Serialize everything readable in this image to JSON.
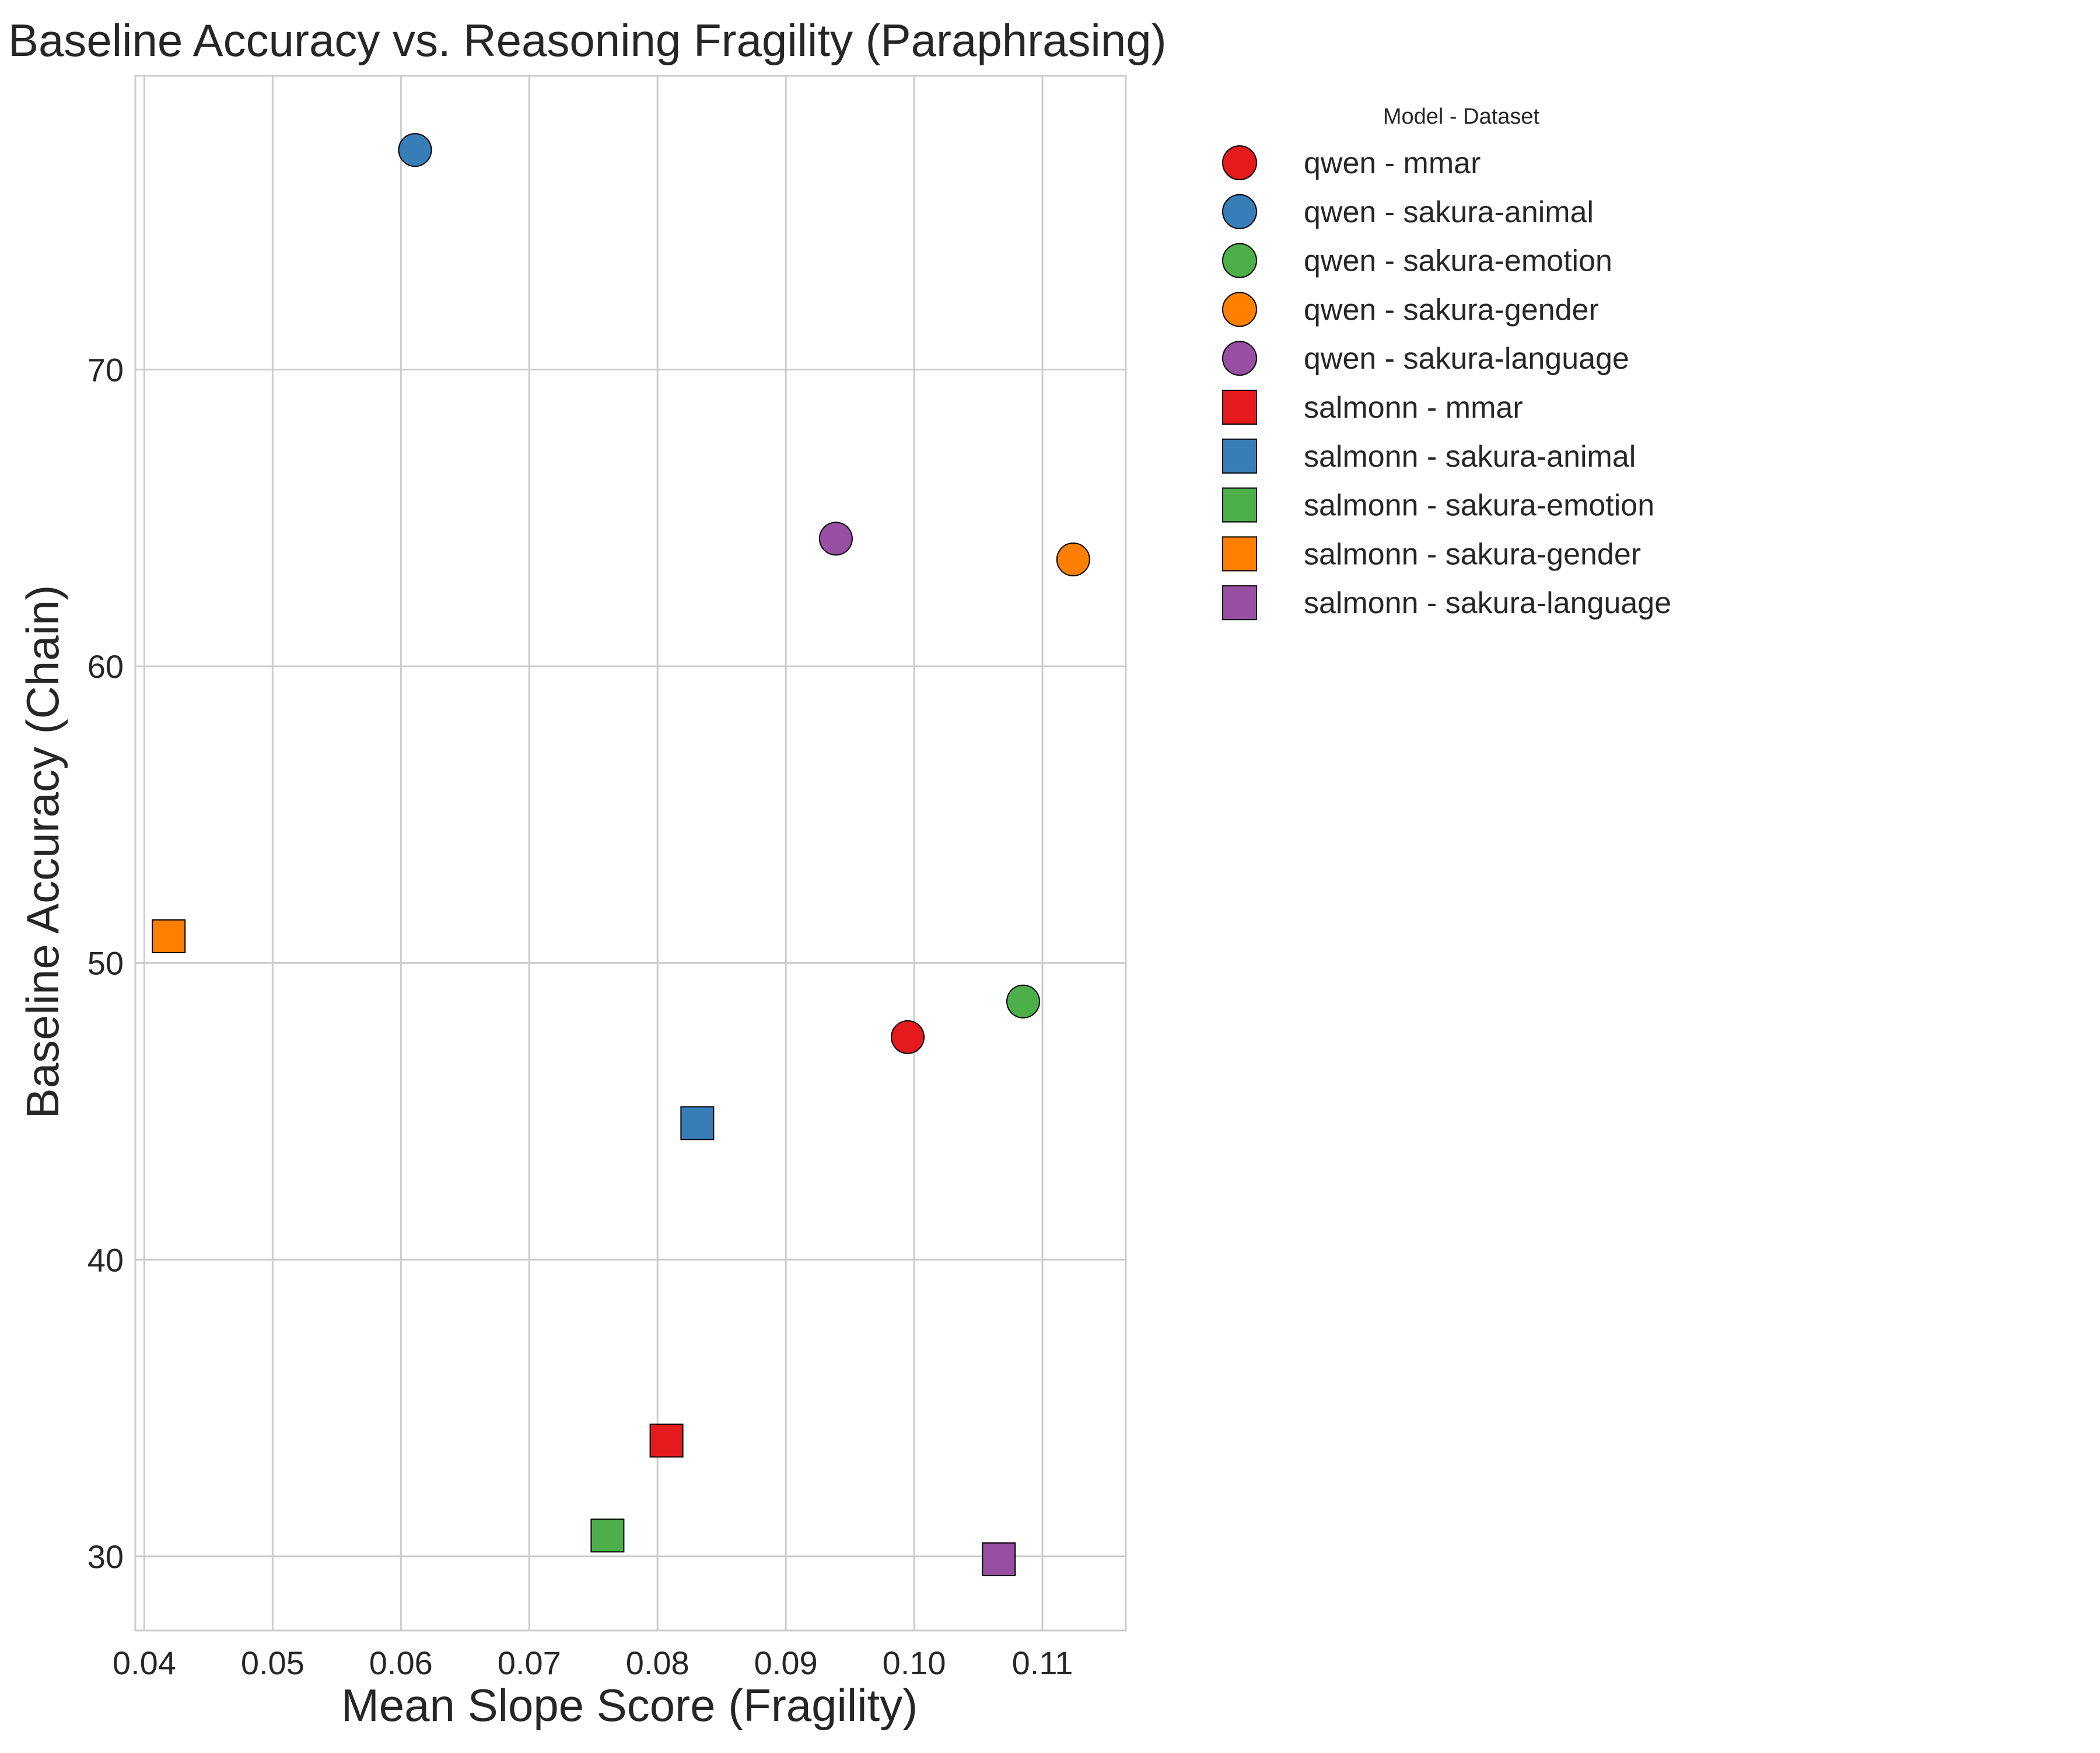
{
  "chart_data": {
    "type": "scatter",
    "title": "Baseline Accuracy vs. Reasoning Fragility (Paraphrasing)",
    "xlabel": "Mean Slope Score (Fragility)",
    "ylabel": "Baseline Accuracy (Chain)",
    "xlim": [
      0.0393,
      0.1165
    ],
    "ylim": [
      27.5,
      79.9
    ],
    "xticks": [
      0.04,
      0.05,
      0.06,
      0.07,
      0.08,
      0.09,
      0.1,
      0.11
    ],
    "xtick_labels": [
      "0.04",
      "0.05",
      "0.06",
      "0.07",
      "0.08",
      "0.09",
      "0.10",
      "0.11"
    ],
    "yticks": [
      30,
      40,
      50,
      60,
      70
    ],
    "ytick_labels": [
      "30",
      "40",
      "50",
      "60",
      "70"
    ],
    "grid": true,
    "legend_title": "Model - Dataset",
    "legend_position": "outside-right",
    "series": [
      {
        "name": "qwen - mmar",
        "marker": "circle",
        "color": "#e41a1c",
        "x": 0.0995,
        "y": 47.5
      },
      {
        "name": "qwen - sakura-animal",
        "marker": "circle",
        "color": "#377eb8",
        "x": 0.0611,
        "y": 77.4
      },
      {
        "name": "qwen - sakura-emotion",
        "marker": "circle",
        "color": "#4daf4a",
        "x": 0.1085,
        "y": 48.7
      },
      {
        "name": "qwen - sakura-gender",
        "marker": "circle",
        "color": "#ff7f00",
        "x": 0.1124,
        "y": 63.6
      },
      {
        "name": "qwen - sakura-language",
        "marker": "circle",
        "color": "#984ea3",
        "x": 0.0939,
        "y": 64.3
      },
      {
        "name": "salmonn - mmar",
        "marker": "square",
        "color": "#e41a1c",
        "x": 0.0807,
        "y": 33.9
      },
      {
        "name": "salmonn - sakura-animal",
        "marker": "square",
        "color": "#377eb8",
        "x": 0.0831,
        "y": 44.6
      },
      {
        "name": "salmonn - sakura-emotion",
        "marker": "square",
        "color": "#4daf4a",
        "x": 0.0761,
        "y": 30.7
      },
      {
        "name": "salmonn - sakura-gender",
        "marker": "square",
        "color": "#ff7f00",
        "x": 0.0419,
        "y": 50.9
      },
      {
        "name": "salmonn - sakura-language",
        "marker": "square",
        "color": "#984ea3",
        "x": 0.1066,
        "y": 29.9
      }
    ]
  }
}
